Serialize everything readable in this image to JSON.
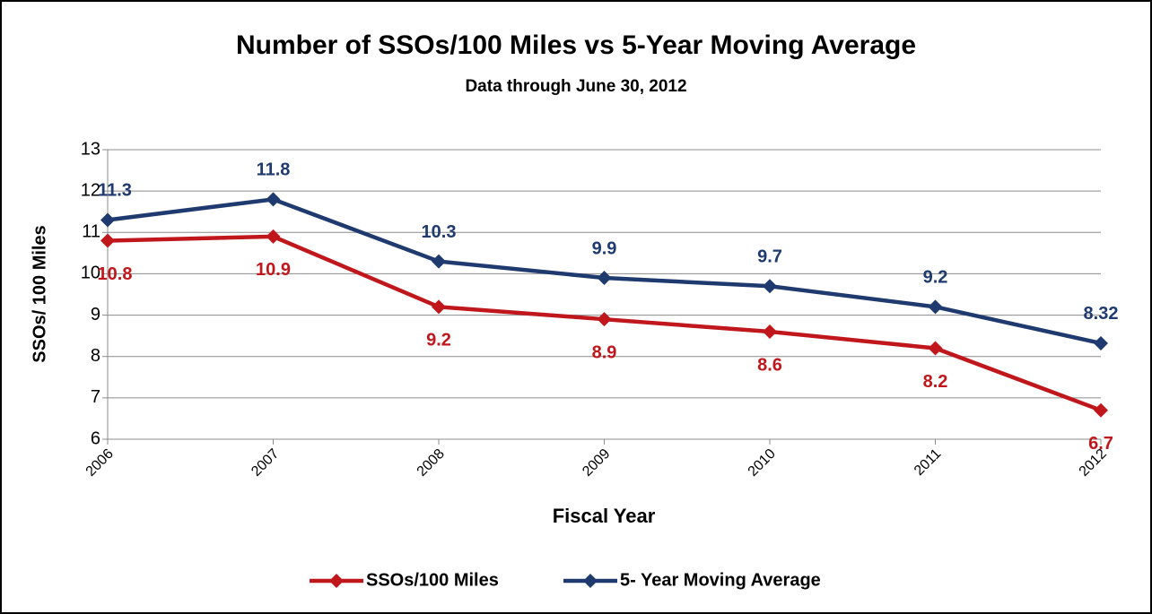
{
  "chart_data": {
    "type": "line",
    "title": "Number of SSOs/100 Miles vs 5-Year Moving Average",
    "subtitle": "Data through June 30, 2012",
    "xlabel": "Fiscal Year",
    "ylabel": "SSOs/ 100 Miles",
    "x": [
      2006,
      2007,
      2008,
      2009,
      2010,
      2011,
      2012
    ],
    "xlim": [
      2006,
      2012
    ],
    "xticks": [
      2006,
      2007,
      2008,
      2009,
      2010,
      2011,
      2012
    ],
    "ylim": [
      6,
      13
    ],
    "yticks": [
      6,
      7,
      8,
      9,
      10,
      11,
      12,
      13
    ],
    "grid": true,
    "legend": "bottom",
    "series": [
      {
        "name": "SSOs/100 Miles",
        "color": "#c0171c",
        "values": [
          10.8,
          10.9,
          9.2,
          8.9,
          8.6,
          8.2,
          6.7
        ]
      },
      {
        "name": "5- Year Moving Average",
        "color": "#1f3a6e",
        "values": [
          11.3,
          11.8,
          10.3,
          9.9,
          9.7,
          9.2,
          8.32
        ]
      }
    ]
  }
}
